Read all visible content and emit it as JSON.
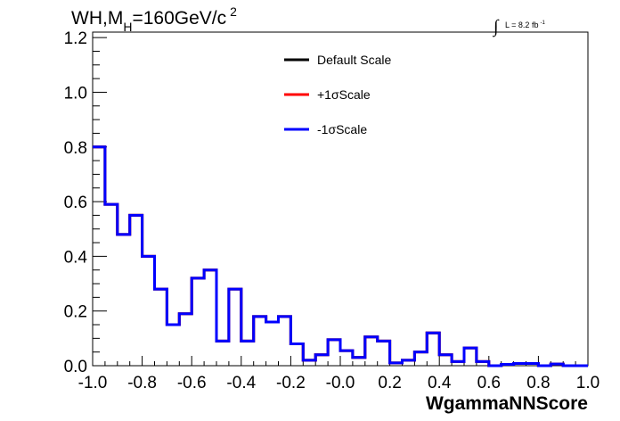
{
  "chart_data": {
    "type": "histogram",
    "title_parts": {
      "a": "WH,M",
      "sub": "H",
      "b": "=160GeV/c",
      "sup": "2"
    },
    "lumi": {
      "integral": "∫",
      "text": "L = 8.2 fb",
      "sup": "-1"
    },
    "xlabel": "WgammaNNScore",
    "ylabel": "",
    "xlim": [
      -1.0,
      1.0
    ],
    "ylim": [
      0.0,
      1.22
    ],
    "x_ticks": [
      "-1.0",
      "-0.8",
      "-0.6",
      "-0.4",
      "-0.2",
      "-0.0",
      "0.2",
      "0.4",
      "0.6",
      "0.8",
      "1.0"
    ],
    "x_tick_values": [
      -1.0,
      -0.8,
      -0.6,
      -0.4,
      -0.2,
      0.0,
      0.2,
      0.4,
      0.6,
      0.8,
      1.0
    ],
    "y_ticks": [
      "0.0",
      "0.2",
      "0.4",
      "0.6",
      "0.8",
      "1.0",
      "1.2"
    ],
    "y_tick_values": [
      0.0,
      0.2,
      0.4,
      0.6,
      0.8,
      1.0,
      1.2
    ],
    "bin_edges_start": -1.0,
    "bin_width": 0.05,
    "series": [
      {
        "name": "Default Scale",
        "color": "#000000",
        "values": [
          0.8,
          0.59,
          0.48,
          0.55,
          0.4,
          0.28,
          0.15,
          0.19,
          0.32,
          0.35,
          0.09,
          0.28,
          0.09,
          0.18,
          0.16,
          0.18,
          0.08,
          0.02,
          0.04,
          0.095,
          0.055,
          0.03,
          0.105,
          0.09,
          0.01,
          0.02,
          0.05,
          0.12,
          0.04,
          0.015,
          0.065,
          0.015,
          0.0,
          0.005,
          0.008,
          0.008,
          0.0,
          0.006,
          0.0,
          0.0
        ]
      },
      {
        "name": "+1σScale",
        "color": "#ff0000",
        "values": [
          0.8,
          0.59,
          0.48,
          0.55,
          0.4,
          0.28,
          0.15,
          0.19,
          0.32,
          0.35,
          0.09,
          0.28,
          0.09,
          0.18,
          0.16,
          0.18,
          0.08,
          0.02,
          0.04,
          0.095,
          0.055,
          0.03,
          0.105,
          0.09,
          0.01,
          0.02,
          0.05,
          0.12,
          0.04,
          0.015,
          0.065,
          0.015,
          0.0,
          0.005,
          0.008,
          0.008,
          0.0,
          0.006,
          0.0,
          0.0
        ]
      },
      {
        "name": "-1σScale",
        "color": "#0000ff",
        "values": [
          0.8,
          0.59,
          0.48,
          0.55,
          0.4,
          0.28,
          0.15,
          0.19,
          0.32,
          0.35,
          0.09,
          0.28,
          0.09,
          0.18,
          0.16,
          0.18,
          0.08,
          0.02,
          0.04,
          0.095,
          0.055,
          0.03,
          0.105,
          0.09,
          0.01,
          0.02,
          0.05,
          0.12,
          0.04,
          0.015,
          0.065,
          0.015,
          0.0,
          0.005,
          0.008,
          0.008,
          0.0,
          0.006,
          0.0,
          0.0
        ]
      }
    ],
    "legend_position": "top-center",
    "grid": false
  }
}
